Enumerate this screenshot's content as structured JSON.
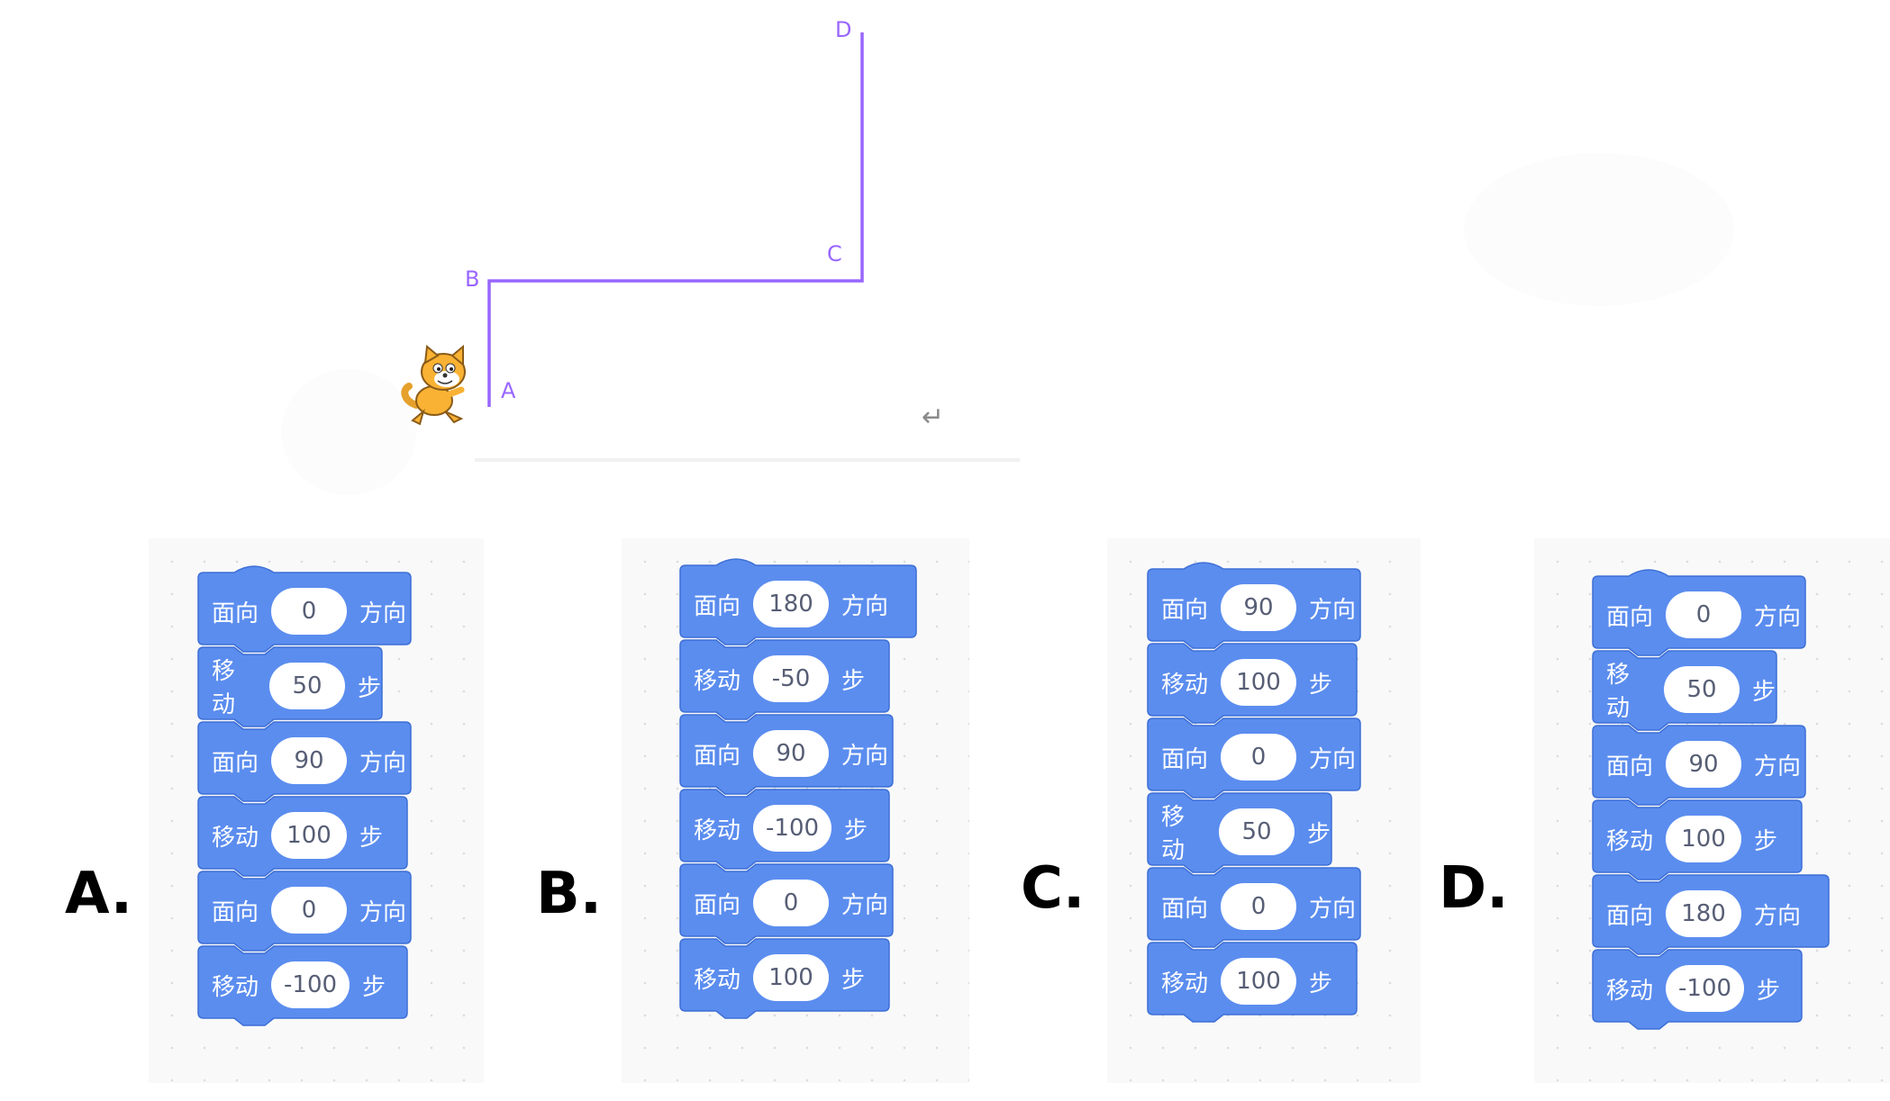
{
  "stage": {
    "labels": {
      "A": "A",
      "B": "B",
      "C": "C",
      "D": "D"
    },
    "path_color": "#9966FF",
    "sprite": "scratch-cat-icon",
    "return_glyph": "↵"
  },
  "block_color": "#5B8DEF",
  "options": [
    {
      "letter": "A.",
      "blocks": [
        {
          "op": "面向",
          "value": "0",
          "unit": "方向"
        },
        {
          "op": "移动",
          "value": "50",
          "unit": "步"
        },
        {
          "op": "面向",
          "value": "90",
          "unit": "方向"
        },
        {
          "op": "移动",
          "value": "100",
          "unit": "步"
        },
        {
          "op": "面向",
          "value": "0",
          "unit": "方向"
        },
        {
          "op": "移动",
          "value": "-100",
          "unit": "步"
        }
      ]
    },
    {
      "letter": "B.",
      "blocks": [
        {
          "op": "面向",
          "value": "180",
          "unit": "方向"
        },
        {
          "op": "移动",
          "value": "-50",
          "unit": "步"
        },
        {
          "op": "面向",
          "value": "90",
          "unit": "方向"
        },
        {
          "op": "移动",
          "value": "-100",
          "unit": "步"
        },
        {
          "op": "面向",
          "value": "0",
          "unit": "方向"
        },
        {
          "op": "移动",
          "value": "100",
          "unit": "步"
        }
      ]
    },
    {
      "letter": "C.",
      "blocks": [
        {
          "op": "面向",
          "value": "90",
          "unit": "方向"
        },
        {
          "op": "移动",
          "value": "100",
          "unit": "步"
        },
        {
          "op": "面向",
          "value": "0",
          "unit": "方向"
        },
        {
          "op": "移动",
          "value": "50",
          "unit": "步"
        },
        {
          "op": "面向",
          "value": "0",
          "unit": "方向"
        },
        {
          "op": "移动",
          "value": "100",
          "unit": "步"
        }
      ]
    },
    {
      "letter": "D.",
      "blocks": [
        {
          "op": "面向",
          "value": "0",
          "unit": "方向"
        },
        {
          "op": "移动",
          "value": "50",
          "unit": "步"
        },
        {
          "op": "面向",
          "value": "90",
          "unit": "方向"
        },
        {
          "op": "移动",
          "value": "100",
          "unit": "步"
        },
        {
          "op": "面向",
          "value": "180",
          "unit": "方向"
        },
        {
          "op": "移动",
          "value": "-100",
          "unit": "步"
        }
      ]
    }
  ]
}
